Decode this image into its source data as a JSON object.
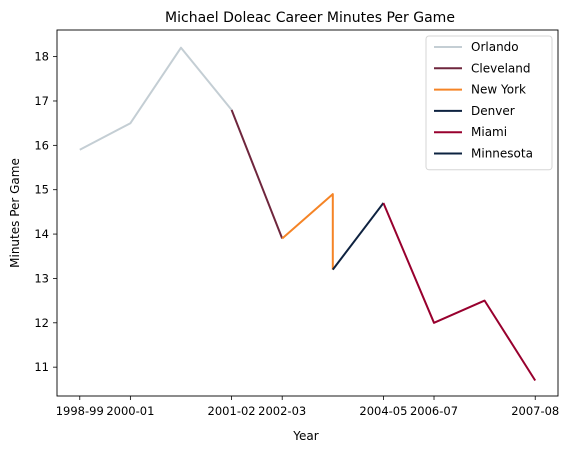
{
  "chart_data": {
    "type": "line",
    "title": "Michael Doleac Career Minutes Per Game",
    "xlabel": "Year",
    "ylabel": "Minutes Per Game",
    "x_tick_labels": [
      "1998-99",
      "2000-01",
      "2001-02",
      "2002-03",
      "2004-05",
      "2006-07",
      "2007-08"
    ],
    "y_ticks": [
      11,
      12,
      13,
      14,
      15,
      16,
      17,
      18
    ],
    "ylim": [
      10.35,
      18.6
    ],
    "grid": false,
    "legend_position": "top-right",
    "series": [
      {
        "name": "Orlando",
        "color": "#c4ced4",
        "points": [
          [
            0,
            15.9
          ],
          [
            1,
            16.5
          ],
          [
            2,
            18.2
          ],
          [
            3,
            16.8
          ]
        ]
      },
      {
        "name": "Cleveland",
        "color": "#6f263d",
        "points": [
          [
            3,
            16.8
          ],
          [
            4,
            13.9
          ]
        ]
      },
      {
        "name": "New York",
        "color": "#f58426",
        "points": [
          [
            4,
            13.9
          ],
          [
            5,
            14.9
          ],
          [
            5,
            13.2
          ]
        ]
      },
      {
        "name": "Denver",
        "color": "#0e2240",
        "points": [
          [
            5,
            13.2
          ],
          [
            6,
            14.7
          ]
        ]
      },
      {
        "name": "Miami",
        "color": "#98002e",
        "points": [
          [
            6,
            14.7
          ],
          [
            7,
            12.0
          ],
          [
            8,
            12.5
          ],
          [
            9,
            10.7
          ]
        ]
      },
      {
        "name": "Minnesota",
        "color": "#0c2340",
        "points": []
      }
    ],
    "x_tick_positions": [
      0,
      1,
      3,
      4,
      6,
      7,
      9
    ],
    "xlim": [
      -0.45,
      9.45
    ]
  }
}
